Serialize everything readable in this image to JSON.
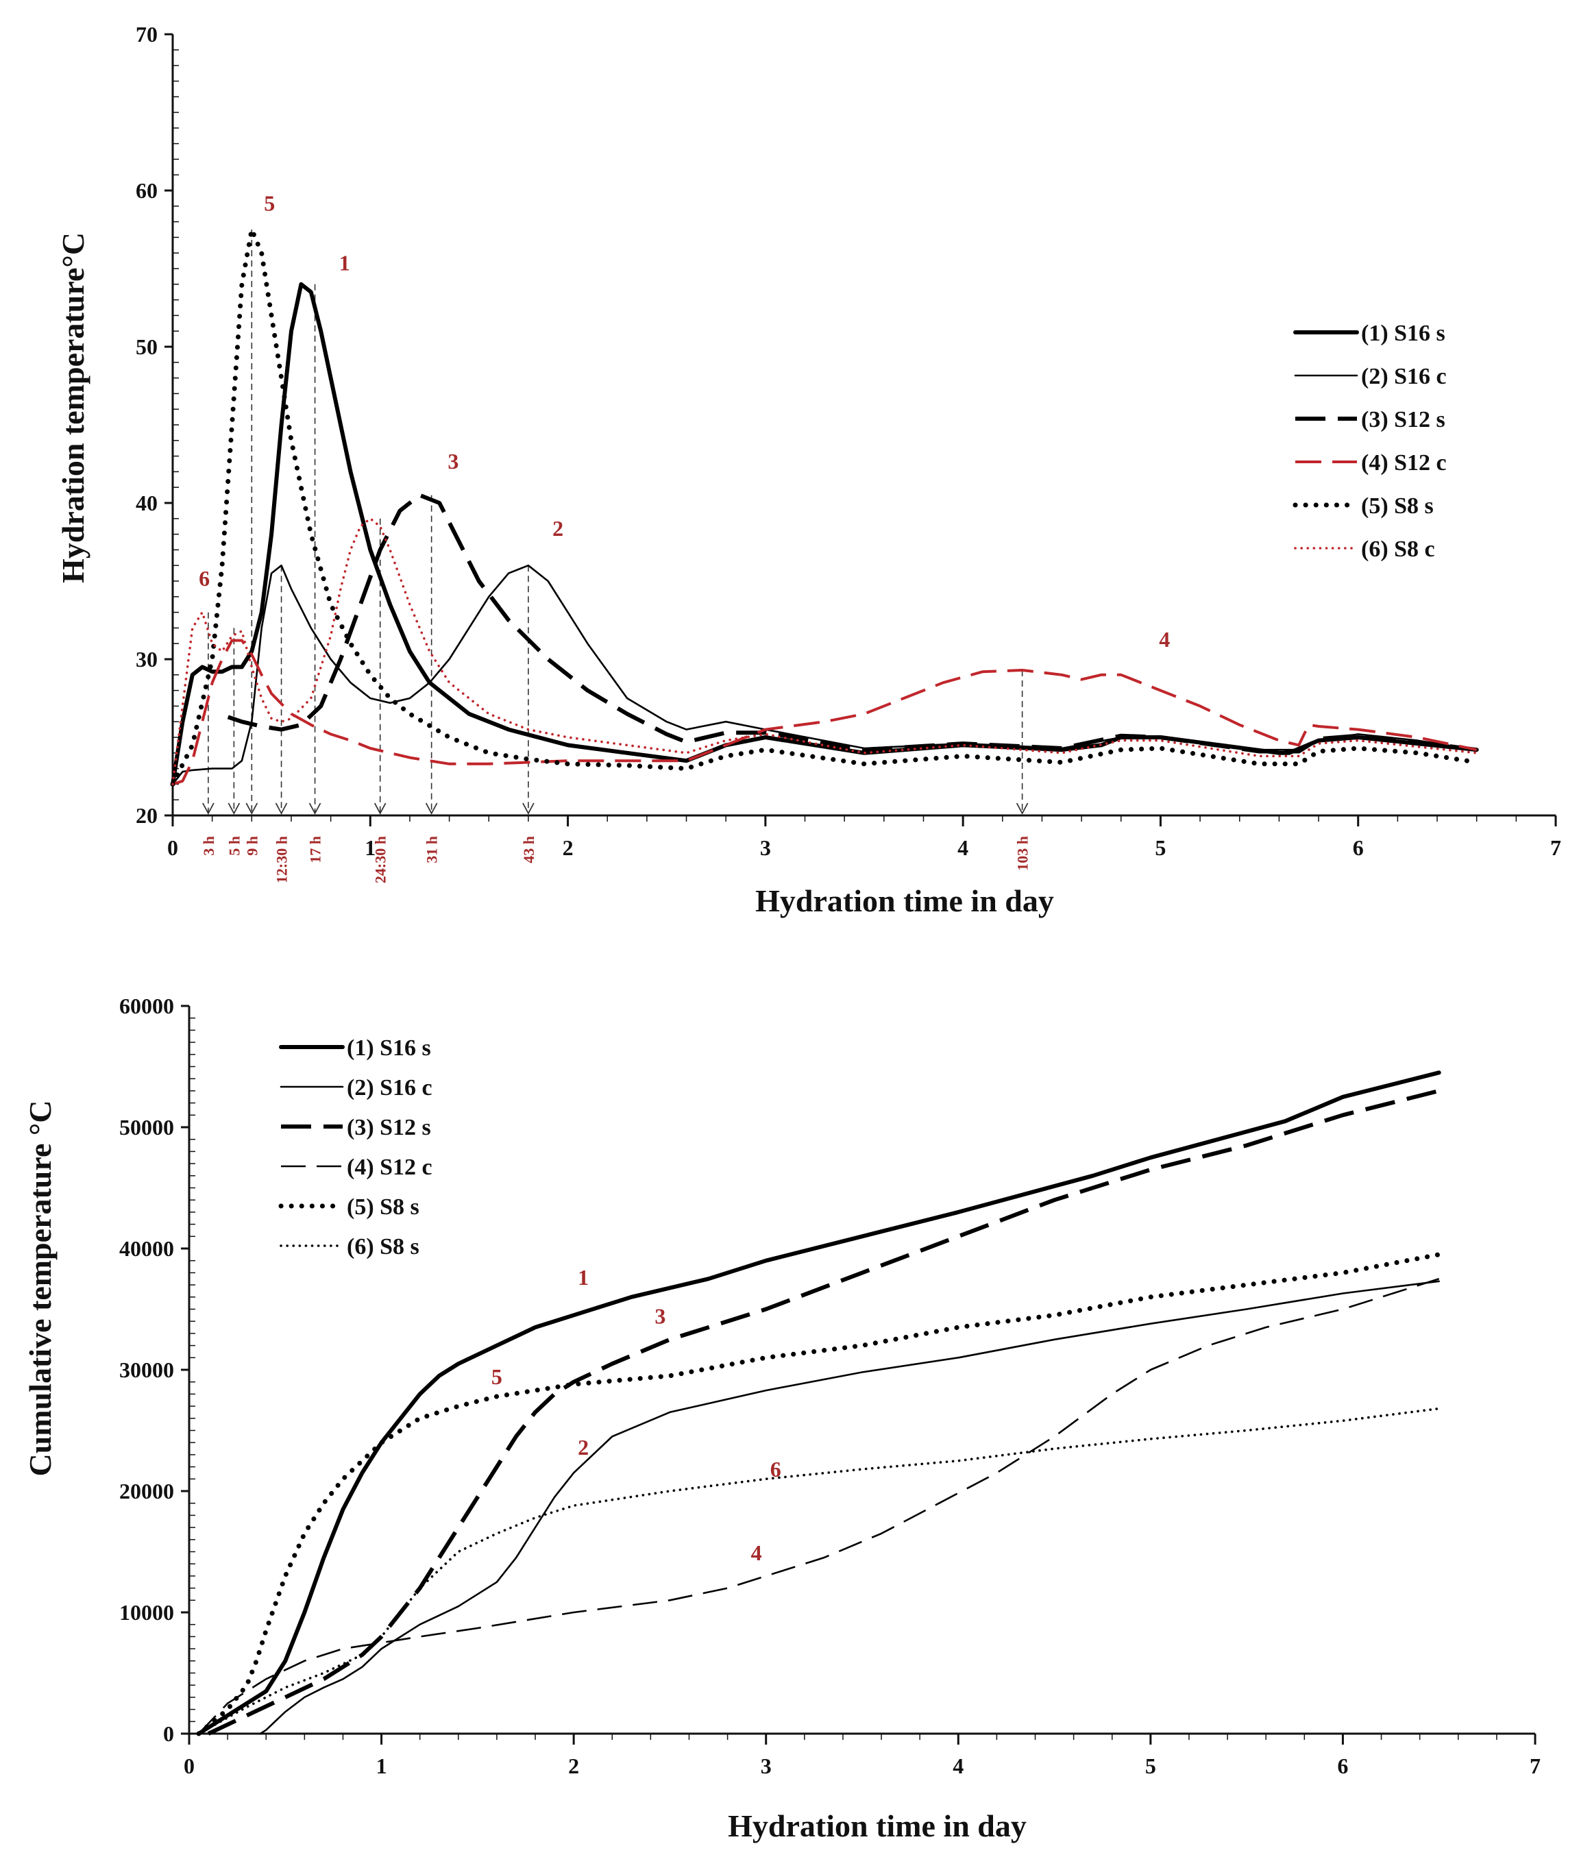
{
  "chart_data": [
    {
      "type": "line",
      "title": "",
      "xlabel": "Hydration time in day",
      "ylabel": "Hydration temperature°C",
      "xlim": [
        0,
        7
      ],
      "ylim": [
        20,
        70
      ],
      "xticks": [
        0,
        1,
        2,
        3,
        4,
        5,
        6,
        7
      ],
      "yticks": [
        20,
        30,
        40,
        50,
        60,
        70
      ],
      "legend_position": "right",
      "series": [
        {
          "name": "(1) S16 s",
          "style": "solid-thick",
          "color": "#000000",
          "x": [
            0,
            0.05,
            0.1,
            0.15,
            0.2,
            0.25,
            0.3,
            0.35,
            0.4,
            0.45,
            0.5,
            0.55,
            0.6,
            0.65,
            0.7,
            0.75,
            0.8,
            0.9,
            1.0,
            1.1,
            1.2,
            1.3,
            1.5,
            1.7,
            2.0,
            2.3,
            2.6,
            2.8,
            3.0,
            3.5,
            4.0,
            4.5,
            4.7,
            4.8,
            5.0,
            5.3,
            5.6,
            5.65,
            5.8,
            6.0,
            6.3,
            6.6
          ],
          "y": [
            22,
            26,
            29,
            29.5,
            29.2,
            29.2,
            29.5,
            29.5,
            30.5,
            33,
            38,
            45,
            51,
            54,
            53.5,
            51,
            48,
            42,
            37,
            33.5,
            30.5,
            28.5,
            26.5,
            25.5,
            24.5,
            24,
            23.5,
            24.5,
            25,
            24,
            24.5,
            24.2,
            24.5,
            25,
            25,
            24.5,
            24,
            24,
            24.8,
            25,
            24.6,
            24.2
          ]
        },
        {
          "name": "(2) S16 c",
          "style": "solid-thin",
          "color": "#000000",
          "x": [
            0,
            0.05,
            0.1,
            0.2,
            0.3,
            0.35,
            0.4,
            0.45,
            0.5,
            0.55,
            0.6,
            0.7,
            0.8,
            0.9,
            1.0,
            1.1,
            1.2,
            1.3,
            1.4,
            1.5,
            1.6,
            1.7,
            1.8,
            1.9,
            2.0,
            2.1,
            2.3,
            2.5,
            2.6,
            2.8,
            3.0,
            3.5,
            4.0,
            4.5,
            4.8,
            5.0,
            5.5,
            5.7,
            5.8,
            6.0,
            6.3,
            6.6
          ],
          "y": [
            22,
            22.8,
            22.9,
            23,
            23,
            23.5,
            26,
            32,
            35.5,
            36,
            34.5,
            32,
            30,
            28.5,
            27.5,
            27.2,
            27.5,
            28.5,
            30,
            32,
            34,
            35.5,
            36,
            35,
            33,
            31,
            27.5,
            26,
            25.5,
            26,
            25.5,
            24.3,
            24.6,
            24.3,
            25,
            25,
            24.2,
            24.2,
            24.8,
            25.2,
            24.8,
            24.2
          ]
        },
        {
          "name": "(3) S12 s",
          "style": "dash-thick",
          "color": "#000000",
          "x": [
            0.28,
            0.35,
            0.45,
            0.55,
            0.65,
            0.75,
            0.85,
            0.95,
            1.05,
            1.15,
            1.25,
            1.35,
            1.45,
            1.55,
            1.7,
            1.9,
            2.1,
            2.3,
            2.5,
            2.6,
            2.8,
            3.0,
            3.5,
            4.0,
            4.5,
            4.8,
            5.0,
            5.5,
            5.7,
            5.8,
            6.0,
            6.3,
            6.6
          ],
          "y": [
            26.3,
            26,
            25.7,
            25.5,
            25.8,
            27,
            30,
            33.5,
            37,
            39.5,
            40.5,
            40,
            37.5,
            35,
            32.5,
            30,
            28,
            26.5,
            25.2,
            24.7,
            25.3,
            25.3,
            24.2,
            24.6,
            24.3,
            25.1,
            25,
            24.1,
            24.1,
            24.9,
            25.1,
            24.7,
            24.2
          ]
        },
        {
          "name": "(4) S12 c",
          "style": "dash-medium",
          "color": "#c0262b",
          "x": [
            0,
            0.05,
            0.1,
            0.15,
            0.2,
            0.25,
            0.3,
            0.35,
            0.4,
            0.45,
            0.5,
            0.6,
            0.7,
            0.8,
            0.9,
            1.0,
            1.2,
            1.4,
            1.6,
            2.0,
            2.3,
            2.6,
            2.8,
            3.0,
            3.3,
            3.5,
            3.7,
            3.9,
            4.1,
            4.3,
            4.5,
            4.6,
            4.7,
            4.8,
            5.0,
            5.2,
            5.4,
            5.6,
            5.7,
            5.75,
            5.8,
            6.0,
            6.3,
            6.6
          ],
          "y": [
            22,
            22.2,
            23.5,
            26,
            28.5,
            30,
            31.2,
            31.2,
            30.3,
            29,
            27.8,
            26.5,
            25.8,
            25.2,
            24.8,
            24.3,
            23.7,
            23.3,
            23.3,
            23.5,
            23.5,
            23.5,
            24.5,
            25.5,
            26,
            26.5,
            27.5,
            28.5,
            29.2,
            29.3,
            29,
            28.7,
            29,
            29,
            28,
            27,
            25.8,
            24.8,
            24.5,
            25.8,
            25.7,
            25.5,
            25,
            24.2
          ]
        },
        {
          "name": "(5) S8 s",
          "style": "dot-thick",
          "color": "#000000",
          "x": [
            0,
            0.1,
            0.2,
            0.25,
            0.3,
            0.35,
            0.4,
            0.45,
            0.5,
            0.55,
            0.6,
            0.7,
            0.8,
            0.9,
            1.0,
            1.1,
            1.2,
            1.4,
            1.6,
            1.8,
            2.0,
            2.3,
            2.6,
            2.8,
            3.0,
            3.5,
            4.0,
            4.5,
            4.8,
            5.0,
            5.5,
            5.7,
            5.8,
            6.0,
            6.3,
            6.6
          ],
          "y": [
            22,
            24.5,
            30,
            36,
            45,
            54,
            57.5,
            56,
            52,
            48,
            44,
            38,
            33.5,
            31,
            29,
            27.5,
            26.5,
            25,
            24,
            23.6,
            23.3,
            23.2,
            23,
            23.8,
            24.2,
            23.3,
            23.8,
            23.4,
            24.2,
            24.3,
            23.3,
            23.3,
            24.1,
            24.3,
            24,
            23.4
          ]
        },
        {
          "name": "(6) S8 c",
          "style": "dot-thin",
          "color": "#c0262b",
          "x": [
            0,
            0.05,
            0.1,
            0.15,
            0.2,
            0.25,
            0.3,
            0.35,
            0.4,
            0.45,
            0.5,
            0.55,
            0.6,
            0.7,
            0.8,
            0.85,
            0.9,
            0.95,
            1.0,
            1.05,
            1.1,
            1.2,
            1.3,
            1.4,
            1.6,
            1.8,
            2.0,
            2.3,
            2.6,
            2.8,
            3.0,
            3.5,
            4.0,
            4.5,
            4.8,
            5.0,
            5.5,
            5.7,
            5.8,
            6.0,
            6.3,
            6.6
          ],
          "y": [
            22,
            27,
            32,
            33,
            31,
            30.5,
            31.5,
            31.8,
            29.5,
            27.5,
            26.2,
            26,
            26.2,
            27.5,
            31.5,
            34.5,
            37,
            38.5,
            39,
            38.5,
            37,
            33.5,
            30.5,
            28.5,
            26.5,
            25.5,
            25,
            24.5,
            24,
            24.8,
            25.2,
            24,
            24.5,
            24,
            24.8,
            24.8,
            23.8,
            23.8,
            24.6,
            24.8,
            24.4,
            24
          ]
        }
      ],
      "peak_labels": [
        {
          "text": "1",
          "x": 0.87,
          "y": 54.9
        },
        {
          "text": "2",
          "x": 1.95,
          "y": 37.9
        },
        {
          "text": "3",
          "x": 1.42,
          "y": 42.2
        },
        {
          "text": "4",
          "x": 5.02,
          "y": 30.8
        },
        {
          "text": "5",
          "x": 0.49,
          "y": 58.7
        },
        {
          "text": "6",
          "x": 0.16,
          "y": 34.7
        }
      ],
      "time_markers": [
        {
          "label": "3 h",
          "x": 0.18
        },
        {
          "label": "5 h",
          "x": 0.31
        },
        {
          "label": "9 h",
          "x": 0.4
        },
        {
          "label": "12:30 h",
          "x": 0.55
        },
        {
          "label": "17 h",
          "x": 0.72
        },
        {
          "label": "24:30 h",
          "x": 1.05
        },
        {
          "label": "31 h",
          "x": 1.31
        },
        {
          "label": "43 h",
          "x": 1.8
        },
        {
          "label": "103 h",
          "x": 4.3
        }
      ]
    },
    {
      "type": "line",
      "title": "",
      "xlabel": "Hydration time in day",
      "ylabel": "Cumulative temperature °C",
      "xlim": [
        0,
        7
      ],
      "ylim": [
        0,
        60000
      ],
      "xticks": [
        0,
        1,
        2,
        3,
        4,
        5,
        6,
        7
      ],
      "yticks": [
        0,
        10000,
        20000,
        30000,
        40000,
        50000,
        60000
      ],
      "legend_position": "top-left",
      "series": [
        {
          "name": "(1) S16 s",
          "style": "solid-thick",
          "color": "#000000",
          "x": [
            0.05,
            0.2,
            0.4,
            0.5,
            0.6,
            0.7,
            0.8,
            0.9,
            1.0,
            1.1,
            1.2,
            1.3,
            1.4,
            1.6,
            1.8,
            2.0,
            2.3,
            2.7,
            3.0,
            3.5,
            4.0,
            4.7,
            5.0,
            5.7,
            6.0,
            6.5
          ],
          "y": [
            0,
            1500,
            3500,
            6000,
            10000,
            14500,
            18500,
            21500,
            24000,
            26000,
            28000,
            29500,
            30500,
            32000,
            33500,
            34500,
            36000,
            37500,
            39000,
            41000,
            43000,
            46000,
            47500,
            50500,
            52500,
            54500
          ]
        },
        {
          "name": "(2) S16 c",
          "style": "solid-thin",
          "color": "#000000",
          "x": [
            0.37,
            0.4,
            0.5,
            0.6,
            0.7,
            0.8,
            0.9,
            1.0,
            1.2,
            1.4,
            1.6,
            1.7,
            1.8,
            1.9,
            2.0,
            2.2,
            2.5,
            3.0,
            3.5,
            4.0,
            4.5,
            5.0,
            5.5,
            6.0,
            6.5
          ],
          "y": [
            0,
            300,
            1800,
            3000,
            3800,
            4500,
            5500,
            7000,
            9000,
            10500,
            12500,
            14500,
            17000,
            19500,
            21500,
            24500,
            26500,
            28300,
            29800,
            31000,
            32500,
            33800,
            35000,
            36300,
            37300
          ]
        },
        {
          "name": "(3) S12 s",
          "style": "dash-thick",
          "color": "#000000",
          "x": [
            0.1,
            0.3,
            0.5,
            0.7,
            0.9,
            1.0,
            1.1,
            1.2,
            1.3,
            1.4,
            1.5,
            1.6,
            1.7,
            1.8,
            1.9,
            2.0,
            2.2,
            2.5,
            3.0,
            3.5,
            4.0,
            4.5,
            5.0,
            5.5,
            6.0,
            6.5
          ],
          "y": [
            0,
            1500,
            3000,
            4500,
            6500,
            8000,
            10000,
            12000,
            14500,
            17000,
            19500,
            22000,
            24500,
            26500,
            28000,
            29000,
            30500,
            32500,
            35000,
            38000,
            41000,
            44000,
            46500,
            48500,
            51000,
            53000
          ]
        },
        {
          "name": "(4) S12 c",
          "style": "dash-thin",
          "color": "#000000",
          "x": [
            0.05,
            0.2,
            0.4,
            0.6,
            0.8,
            1.0,
            1.2,
            1.5,
            2.0,
            2.5,
            2.8,
            3.0,
            3.3,
            3.6,
            3.9,
            4.2,
            4.5,
            4.8,
            5.0,
            5.3,
            5.6,
            6.0,
            6.5
          ],
          "y": [
            0,
            2500,
            4500,
            6000,
            7000,
            7500,
            8000,
            8700,
            10000,
            11000,
            12000,
            13000,
            14500,
            16500,
            19000,
            21500,
            24500,
            28000,
            30000,
            32000,
            33500,
            35000,
            37500
          ]
        },
        {
          "name": "(5) S8 s",
          "style": "dot-thick",
          "color": "#000000",
          "x": [
            0.05,
            0.2,
            0.3,
            0.35,
            0.4,
            0.5,
            0.6,
            0.7,
            0.8,
            0.9,
            1.0,
            1.1,
            1.2,
            1.4,
            1.6,
            1.8,
            2.0,
            2.5,
            3.0,
            3.5,
            4.0,
            4.5,
            5.0,
            5.5,
            6.0,
            6.5
          ],
          "y": [
            0,
            2000,
            4000,
            6000,
            8500,
            13000,
            16500,
            19000,
            21000,
            22500,
            24000,
            25000,
            26000,
            27000,
            27800,
            28300,
            28800,
            29500,
            31000,
            32000,
            33500,
            34500,
            36000,
            37000,
            38000,
            39500
          ]
        },
        {
          "name": "(6) S8 s",
          "style": "dot-thin",
          "color": "#000000",
          "x": [
            0.05,
            0.3,
            0.5,
            0.7,
            0.9,
            1.0,
            1.1,
            1.2,
            1.3,
            1.4,
            1.6,
            1.8,
            2.0,
            2.5,
            3.0,
            3.5,
            4.0,
            4.5,
            5.0,
            5.5,
            6.0,
            6.5
          ],
          "y": [
            0,
            2200,
            3800,
            5000,
            6500,
            8000,
            10000,
            12000,
            13500,
            15000,
            16500,
            17800,
            18800,
            20000,
            21000,
            21800,
            22500,
            23500,
            24300,
            25000,
            25800,
            26800
          ]
        }
      ],
      "peak_labels": [
        {
          "text": "1",
          "x": 2.05,
          "y": 37000
        },
        {
          "text": "2",
          "x": 2.05,
          "y": 23000
        },
        {
          "text": "3",
          "x": 2.45,
          "y": 33800
        },
        {
          "text": "4",
          "x": 2.95,
          "y": 14300
        },
        {
          "text": "5",
          "x": 1.6,
          "y": 28800
        },
        {
          "text": "6",
          "x": 3.05,
          "y": 21200
        }
      ]
    }
  ]
}
